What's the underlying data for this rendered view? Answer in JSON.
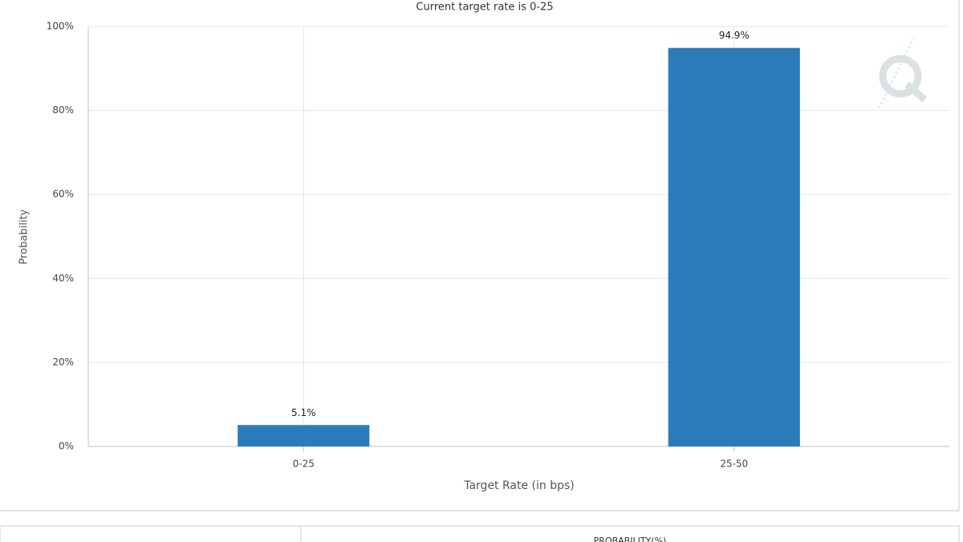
{
  "chart_data": {
    "type": "bar",
    "subtitle": "Current target rate is 0-25",
    "categories": [
      "0-25",
      "25-50"
    ],
    "values": [
      5.1,
      94.9
    ],
    "value_labels": [
      "5.1%",
      "94.9%"
    ],
    "color": "#2b7bb9",
    "xlabel": "Target Rate (in bps)",
    "ylabel": "Probability",
    "ylim": [
      0,
      100
    ],
    "yticks": [
      {
        "value": 0,
        "label": "0%"
      },
      {
        "value": 20,
        "label": "20%"
      },
      {
        "value": 40,
        "label": "40%"
      },
      {
        "value": 60,
        "label": "60%"
      },
      {
        "value": 80,
        "label": "80%"
      },
      {
        "value": 100,
        "label": "100%"
      }
    ],
    "grid": true
  },
  "table": {
    "header": "PROBABILITY(%)"
  }
}
